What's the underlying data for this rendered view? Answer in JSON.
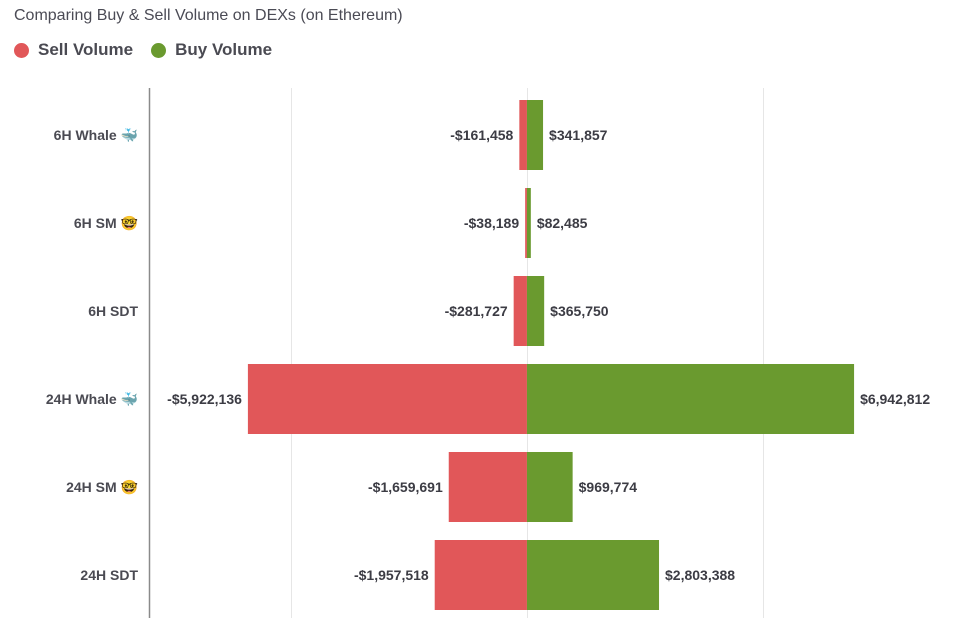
{
  "chart_data": {
    "type": "bar",
    "orientation": "horizontal-diverging",
    "title": "Comparing Buy & Sell Volume on DEXs (on Ethereum)",
    "categories": [
      "6H Whale 🐳",
      "6H SM 🤓",
      "6H SDT",
      "24H Whale 🐳",
      "24H SM 🤓",
      "24H SDT"
    ],
    "series": [
      {
        "name": "Sell Volume",
        "color": "#e15759",
        "values": [
          -161458,
          -38189,
          -281727,
          -5922136,
          -1659691,
          -1957518
        ],
        "labels": [
          "-$161,458",
          "-$38,189",
          "-$281,727",
          "-$5,922,136",
          "-$1,659,691",
          "-$1,957,518"
        ]
      },
      {
        "name": "Buy Volume",
        "color": "#6a9a2f",
        "values": [
          341857,
          82485,
          365750,
          6942812,
          969774,
          2803388
        ],
        "labels": [
          "$341,857",
          "$82,485",
          "$365,750",
          "$6,942,812",
          "$969,774",
          "$2,803,388"
        ]
      }
    ],
    "xlim": [
      -8000000,
      9000000
    ],
    "gridlines": [
      -5000000,
      0,
      5000000
    ],
    "grid": true,
    "legend_position": "top-left"
  }
}
